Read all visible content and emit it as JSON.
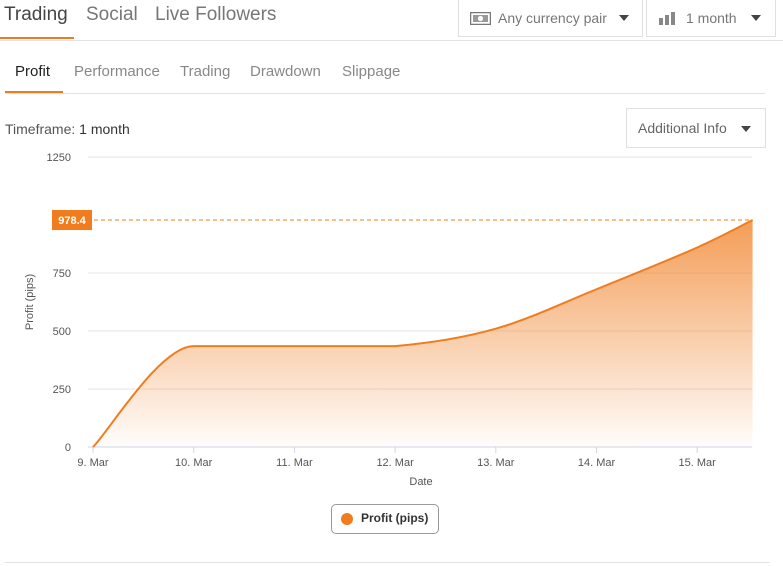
{
  "top_tabs": {
    "trading": "Trading",
    "social": "Social",
    "live_followers": "Live Followers"
  },
  "filters": {
    "currency": "Any currency pair",
    "period": "1 month"
  },
  "sub_tabs": {
    "profit": "Profit",
    "performance": "Performance",
    "trading": "Trading",
    "drawdown": "Drawdown",
    "slippage": "Slippage"
  },
  "timeframe": {
    "label": "Timeframe:",
    "value": "1 month"
  },
  "additional_info": "Additional Info",
  "accent_color": "#f07c1e",
  "chart_data": {
    "type": "area",
    "title": "",
    "xlabel": "Date",
    "ylabel": "Profit (pips)",
    "ylim": [
      0,
      1250
    ],
    "yticks": [
      0,
      250,
      500,
      750,
      1250
    ],
    "xticks": [
      "9. Mar",
      "10. Mar",
      "11. Mar",
      "12. Mar",
      "13. Mar",
      "14. Mar",
      "15. Mar"
    ],
    "x_days": [
      0,
      1,
      2,
      3,
      4,
      5,
      6,
      6.55
    ],
    "series": [
      {
        "name": "Profit (pips)",
        "values": [
          0,
          435,
          435,
          435,
          510,
          680,
          860,
          978.4
        ]
      }
    ],
    "last_value_label": "978.4",
    "legend": "bottom-center",
    "grid": true
  }
}
